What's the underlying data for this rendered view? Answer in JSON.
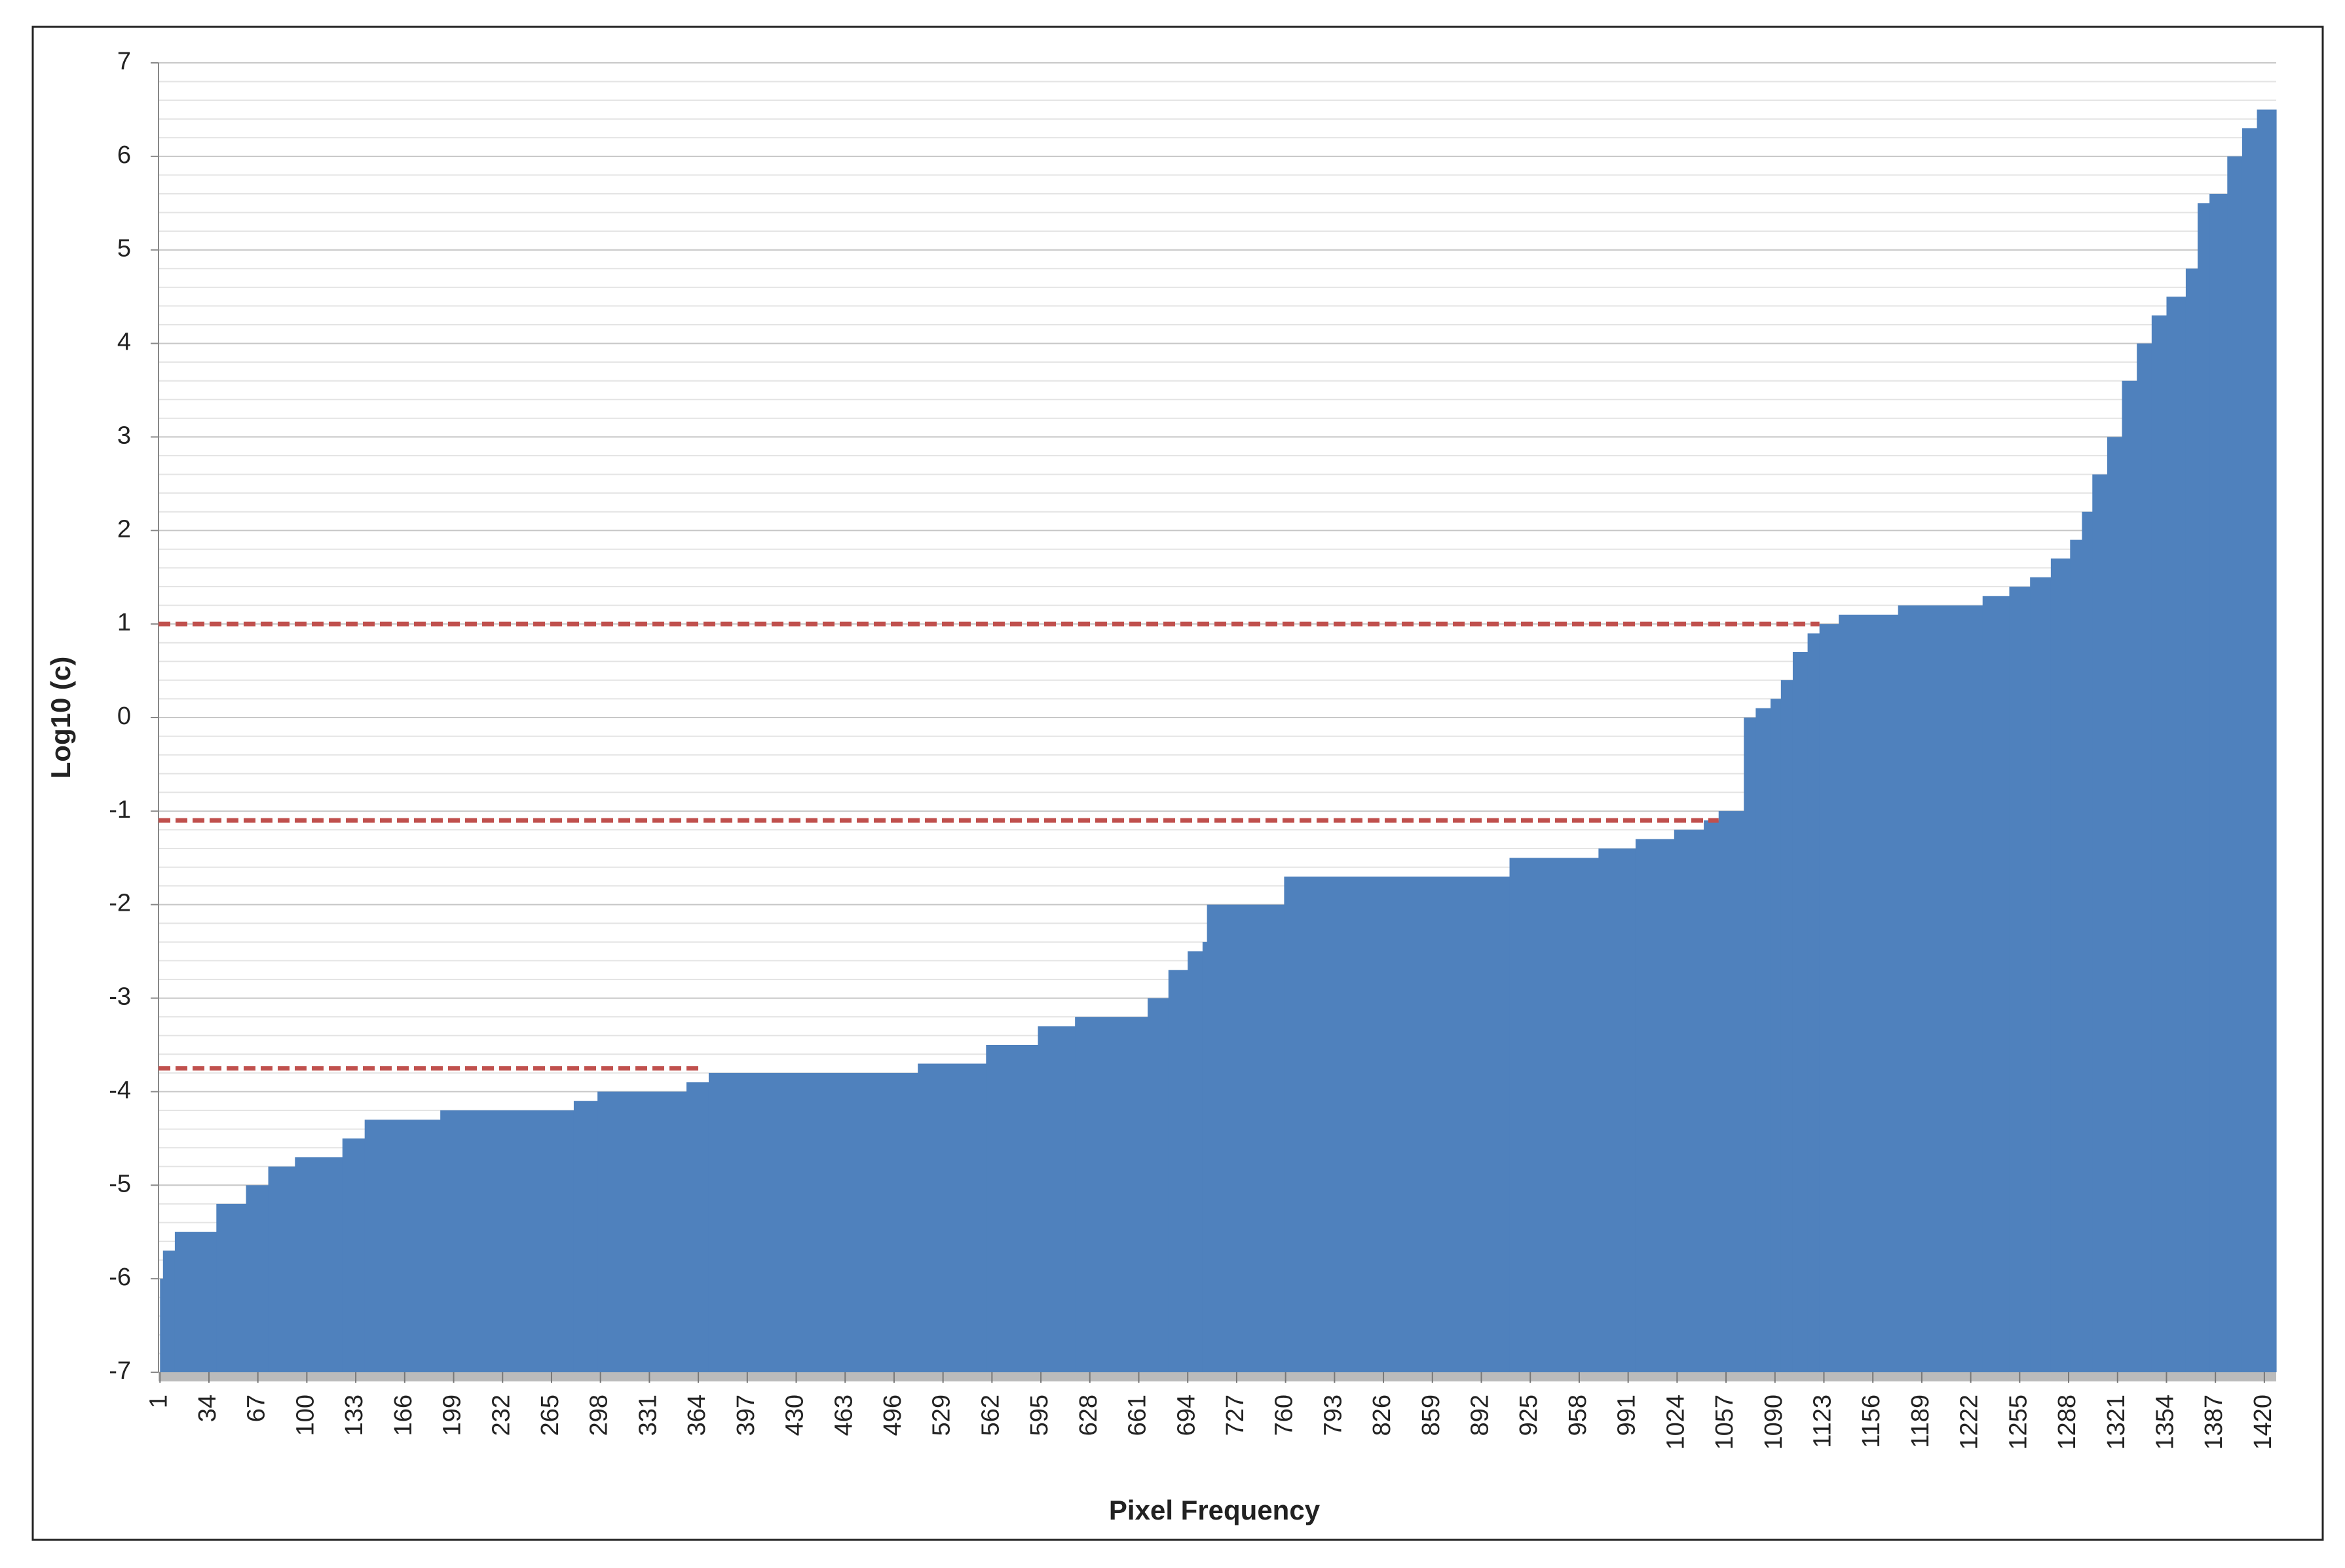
{
  "chart_data": {
    "type": "step_area",
    "x_label": "Pixel Frequency",
    "y_label": "Log10 (c)",
    "x": [
      1,
      3,
      11,
      39,
      59,
      74,
      92,
      124,
      139,
      190,
      280,
      296,
      356,
      371,
      512,
      558,
      593,
      618,
      667,
      681,
      694,
      704,
      707,
      759,
      911,
      971,
      996,
      1022,
      1042,
      1052,
      1069,
      1077,
      1087,
      1094,
      1102,
      1112,
      1120,
      1133,
      1173,
      1230,
      1248,
      1262,
      1276,
      1289,
      1297,
      1304,
      1314,
      1324,
      1334,
      1344,
      1354,
      1367,
      1375,
      1383,
      1395,
      1405,
      1415
    ],
    "values": [
      -6,
      -5.7,
      -5.5,
      -5.2,
      -5,
      -4.8,
      -4.7,
      -4.5,
      -4.3,
      -4.2,
      -4.1,
      -4,
      -3.9,
      -3.8,
      -3.7,
      -3.5,
      -3.3,
      -3.2,
      -3,
      -2.7,
      -2.5,
      -2.4,
      -2,
      -1.7,
      -1.5,
      -1.4,
      -1.3,
      -1.2,
      -1.1,
      -1,
      0,
      0.1,
      0.2,
      0.4,
      0.7,
      0.9,
      1,
      1.1,
      1.2,
      1.3,
      1.4,
      1.5,
      1.7,
      1.9,
      2.2,
      2.6,
      3,
      3.6,
      4,
      4.3,
      4.5,
      4.8,
      5.5,
      5.6,
      6,
      6.3,
      6.5
    ],
    "color": "#4f81bd",
    "xlim": [
      0,
      1428
    ],
    "xticks": [
      1,
      34,
      67,
      100,
      133,
      166,
      199,
      232,
      265,
      298,
      331,
      364,
      397,
      430,
      463,
      496,
      529,
      562,
      595,
      628,
      661,
      694,
      727,
      760,
      793,
      826,
      859,
      892,
      925,
      958,
      991,
      1024,
      1057,
      1090,
      1123,
      1156,
      1189,
      1222,
      1255,
      1288,
      1321,
      1354,
      1387,
      1420
    ],
    "ylim": [
      -7,
      7
    ],
    "yticks": [
      -7,
      -6,
      -5,
      -4,
      -3,
      -2,
      -1,
      0,
      1,
      2,
      3,
      4,
      5,
      6,
      7
    ],
    "grid": true,
    "minor_grid_step": 0.2,
    "reference_lines": [
      {
        "y": 1,
        "x_end": 1120,
        "color": "#c0504d"
      },
      {
        "y": -1.1,
        "x_end": 1052,
        "color": "#c0504d"
      },
      {
        "y": -3.75,
        "x_end": 365,
        "color": "#c0504d"
      }
    ]
  }
}
